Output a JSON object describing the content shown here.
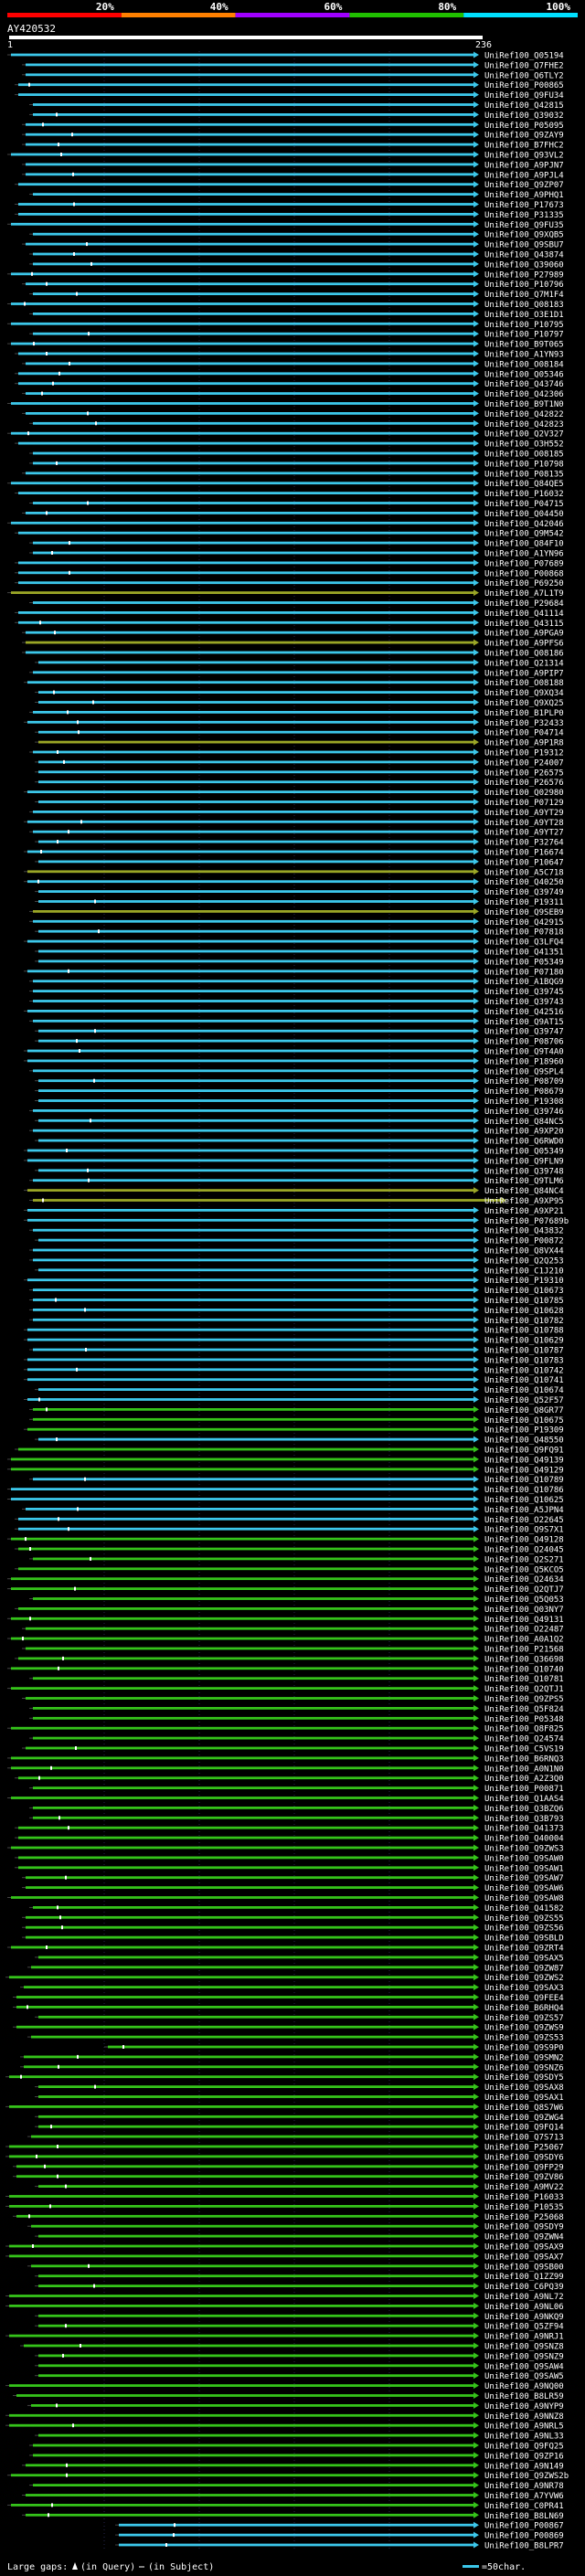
{
  "header": {
    "scale_labels": [
      "20%",
      "40%",
      "60%",
      "80%",
      "100%"
    ],
    "scale_colors": [
      "#ff0000",
      "#ff8000",
      "#a000ff",
      "#20c000",
      "#00e0ff"
    ],
    "query_id": "AY420532",
    "range_start": "1",
    "range_end": "236"
  },
  "colors": {
    "cyan": "#3cc7ea",
    "green": "#35c31a",
    "olive": "#9aa626",
    "black": "#000000",
    "white": "#ffffff",
    "grid": "#8080ff"
  },
  "hits": [
    {
      "label": "UniRef100_Q05194",
      "color": "cyan"
    },
    {
      "label": "UniRef100_Q7FHE2",
      "color": "cyan"
    },
    {
      "label": "UniRef100_Q6TLY2",
      "color": "cyan"
    },
    {
      "label": "UniRef100_P00865",
      "color": "cyan"
    },
    {
      "label": "UniRef100_Q9FU34",
      "color": "cyan"
    },
    {
      "label": "UniRef100_Q42815",
      "color": "cyan"
    },
    {
      "label": "UniRef100_Q39032",
      "color": "cyan"
    },
    {
      "label": "UniRef100_P05095",
      "color": "cyan"
    },
    {
      "label": "UniRef100_Q9ZAY9",
      "color": "cyan"
    },
    {
      "label": "UniRef100_B7FHC2",
      "color": "cyan"
    },
    {
      "label": "UniRef100_Q93VL2",
      "color": "cyan"
    },
    {
      "label": "UniRef100_A9PJN7",
      "color": "cyan"
    },
    {
      "label": "UniRef100_A9PJL4",
      "color": "cyan"
    },
    {
      "label": "UniRef100_Q9ZP07",
      "color": "cyan"
    },
    {
      "label": "UniRef100_A9PHQ1",
      "color": "cyan"
    },
    {
      "label": "UniRef100_P17673",
      "color": "cyan"
    },
    {
      "label": "UniRef100_P31335",
      "color": "cyan"
    },
    {
      "label": "UniRef100_Q9FU35",
      "color": "cyan"
    },
    {
      "label": "UniRef100_Q9XQB5",
      "color": "cyan"
    },
    {
      "label": "UniRef100_Q9SBU7",
      "color": "cyan"
    },
    {
      "label": "UniRef100_Q43874",
      "color": "cyan"
    },
    {
      "label": "UniRef100_Q39060",
      "color": "cyan"
    },
    {
      "label": "UniRef100_P27989",
      "color": "cyan"
    },
    {
      "label": "UniRef100_P10796",
      "color": "cyan"
    },
    {
      "label": "UniRef100_Q7M1F4",
      "color": "cyan"
    },
    {
      "label": "UniRef100_Q08183",
      "color": "cyan"
    },
    {
      "label": "UniRef100_O3E1D1",
      "color": "cyan"
    },
    {
      "label": "UniRef100_P10795",
      "color": "cyan"
    },
    {
      "label": "UniRef100_P10797",
      "color": "cyan"
    },
    {
      "label": "UniRef100_B9T065",
      "color": "cyan"
    },
    {
      "label": "UniRef100_A1YN93",
      "color": "cyan"
    },
    {
      "label": "UniRef100_O08184",
      "color": "cyan"
    },
    {
      "label": "UniRef100_Q05346",
      "color": "cyan"
    },
    {
      "label": "UniRef100_Q43746",
      "color": "cyan"
    },
    {
      "label": "UniRef100_Q42306",
      "color": "cyan"
    },
    {
      "label": "UniRef100_B9T1N0",
      "color": "cyan"
    },
    {
      "label": "UniRef100_Q42822",
      "color": "cyan"
    },
    {
      "label": "UniRef100_Q42823",
      "color": "cyan"
    },
    {
      "label": "UniRef100_Q2V327",
      "color": "cyan"
    },
    {
      "label": "UniRef100_O3H552",
      "color": "cyan"
    },
    {
      "label": "UniRef100_O08185",
      "color": "cyan"
    },
    {
      "label": "UniRef100_P10798",
      "color": "cyan"
    },
    {
      "label": "UniRef100_P08135",
      "color": "cyan"
    },
    {
      "label": "UniRef100_Q84QE5",
      "color": "cyan"
    },
    {
      "label": "UniRef100_P16032",
      "color": "cyan"
    },
    {
      "label": "UniRef100_P04715",
      "color": "cyan"
    },
    {
      "label": "UniRef100_Q04450",
      "color": "cyan"
    },
    {
      "label": "UniRef100_Q42046",
      "color": "cyan"
    },
    {
      "label": "UniRef100_Q9M542",
      "color": "cyan"
    },
    {
      "label": "UniRef100_Q84F10",
      "color": "cyan"
    },
    {
      "label": "UniRef100_A1YN96",
      "color": "cyan"
    },
    {
      "label": "UniRef100_P07689",
      "color": "cyan"
    },
    {
      "label": "UniRef100_P00868",
      "color": "cyan"
    },
    {
      "label": "UniRef100_P69250",
      "color": "cyan"
    },
    {
      "label": "UniRef100_A7L1T9",
      "color": "olive"
    },
    {
      "label": "UniRef100_P29684",
      "color": "cyan"
    },
    {
      "label": "UniRef100_Q41114",
      "color": "cyan"
    },
    {
      "label": "UniRef100_Q43115",
      "color": "cyan"
    },
    {
      "label": "UniRef100_A9PGA9",
      "color": "cyan"
    },
    {
      "label": "UniRef100_A9PFS6",
      "color": "olive"
    },
    {
      "label": "UniRef100_Q08186",
      "color": "cyan"
    },
    {
      "label": "UniRef100_Q21314",
      "color": "cyan"
    },
    {
      "label": "UniRef100_A9PIP7",
      "color": "cyan"
    },
    {
      "label": "UniRef100_O08188",
      "color": "cyan"
    },
    {
      "label": "UniRef100_Q9XQ34",
      "color": "cyan"
    },
    {
      "label": "UniRef100_Q9XQ25",
      "color": "cyan"
    },
    {
      "label": "UniRef100_B1PLP0",
      "color": "cyan"
    },
    {
      "label": "UniRef100_P32433",
      "color": "cyan"
    },
    {
      "label": "UniRef100_P04714",
      "color": "cyan"
    },
    {
      "label": "UniRef100_A9P1R8",
      "color": "olive"
    },
    {
      "label": "UniRef100_P19312",
      "color": "cyan"
    },
    {
      "label": "UniRef100_P24007",
      "color": "cyan"
    },
    {
      "label": "UniRef100_P26575",
      "color": "cyan"
    },
    {
      "label": "UniRef100_P26576",
      "color": "cyan"
    },
    {
      "label": "UniRef100_Q02980",
      "color": "cyan"
    },
    {
      "label": "UniRef100_P07129",
      "color": "cyan"
    },
    {
      "label": "UniRef100_A9YT29",
      "color": "cyan"
    },
    {
      "label": "UniRef100_A9YT28",
      "color": "cyan"
    },
    {
      "label": "UniRef100_A9YT27",
      "color": "cyan"
    },
    {
      "label": "UniRef100_P32764",
      "color": "cyan"
    },
    {
      "label": "UniRef100_P16674",
      "color": "cyan"
    },
    {
      "label": "UniRef100_P10647",
      "color": "cyan"
    },
    {
      "label": "UniRef100_A5C718",
      "color": "olive"
    },
    {
      "label": "UniRef100_Q40250",
      "color": "cyan"
    },
    {
      "label": "UniRef100_Q39749",
      "color": "cyan"
    },
    {
      "label": "UniRef100_P19311",
      "color": "cyan"
    },
    {
      "label": "UniRef100_Q9SEB9",
      "color": "olive"
    },
    {
      "label": "UniRef100_Q42915",
      "color": "cyan"
    },
    {
      "label": "UniRef100_P07818",
      "color": "cyan"
    },
    {
      "label": "UniRef100_Q3LFQ4",
      "color": "cyan"
    },
    {
      "label": "UniRef100_Q41351",
      "color": "cyan"
    },
    {
      "label": "UniRef100_P05349",
      "color": "cyan"
    },
    {
      "label": "UniRef100_P07180",
      "color": "cyan"
    },
    {
      "label": "UniRef100_A1BQG9",
      "color": "cyan"
    },
    {
      "label": "UniRef100_Q39745",
      "color": "cyan"
    },
    {
      "label": "UniRef100_Q39743",
      "color": "cyan"
    },
    {
      "label": "UniRef100_Q42516",
      "color": "cyan"
    },
    {
      "label": "UniRef100_Q9AT15",
      "color": "cyan"
    },
    {
      "label": "UniRef100_Q39747",
      "color": "cyan"
    },
    {
      "label": "UniRef100_P08706",
      "color": "cyan"
    },
    {
      "label": "UniRef100_Q9T4A0",
      "color": "cyan"
    },
    {
      "label": "UniRef100_P18960",
      "color": "cyan"
    },
    {
      "label": "UniRef100_Q9SPL4",
      "color": "cyan"
    },
    {
      "label": "UniRef100_P08709",
      "color": "cyan"
    },
    {
      "label": "UniRef100_P08679",
      "color": "cyan"
    },
    {
      "label": "UniRef100_P19308",
      "color": "cyan"
    },
    {
      "label": "UniRef100_Q39746",
      "color": "cyan"
    },
    {
      "label": "UniRef100_Q84NC5",
      "color": "cyan"
    },
    {
      "label": "UniRef100_A9XP20",
      "color": "cyan"
    },
    {
      "label": "UniRef100_Q6RWD0",
      "color": "cyan"
    },
    {
      "label": "UniRef100_Q05349",
      "color": "cyan"
    },
    {
      "label": "UniRef100_Q9FLN9",
      "color": "cyan"
    },
    {
      "label": "UniRef100_Q39748",
      "color": "cyan"
    },
    {
      "label": "UniRef100_Q9TLM6",
      "color": "cyan"
    },
    {
      "label": "UniRef100_Q84NC4",
      "color": "olive"
    },
    {
      "label": "UniRef100_A9XP95",
      "color": "olive"
    },
    {
      "label": "UniRef100_A9XP21",
      "color": "cyan"
    },
    {
      "label": "UniRef100_P07689b",
      "color": "cyan"
    },
    {
      "label": "UniRef100_Q43832",
      "color": "cyan"
    },
    {
      "label": "UniRef100_P00872",
      "color": "cyan"
    },
    {
      "label": "UniRef100_Q8VX44",
      "color": "cyan"
    },
    {
      "label": "UniRef100_Q2Q253",
      "color": "cyan"
    },
    {
      "label": "UniRef100_C1J210",
      "color": "cyan"
    },
    {
      "label": "UniRef100_P19310",
      "color": "cyan"
    },
    {
      "label": "UniRef100_Q10673",
      "color": "cyan"
    },
    {
      "label": "UniRef100_Q10785",
      "color": "cyan"
    },
    {
      "label": "UniRef100_Q10628",
      "color": "cyan"
    },
    {
      "label": "UniRef100_Q10782",
      "color": "cyan"
    },
    {
      "label": "UniRef100_Q10788",
      "color": "cyan"
    },
    {
      "label": "UniRef100_Q10629",
      "color": "cyan"
    },
    {
      "label": "UniRef100_Q10787",
      "color": "cyan"
    },
    {
      "label": "UniRef100_Q10783",
      "color": "cyan"
    },
    {
      "label": "UniRef100_Q10742",
      "color": "cyan"
    },
    {
      "label": "UniRef100_Q10741",
      "color": "cyan"
    },
    {
      "label": "UniRef100_Q10674",
      "color": "cyan"
    },
    {
      "label": "UniRef100_Q52F57",
      "color": "cyan"
    },
    {
      "label": "UniRef100_Q8GR77",
      "color": "green"
    },
    {
      "label": "UniRef100_Q10675",
      "color": "green"
    },
    {
      "label": "UniRef100_P19309",
      "color": "green"
    },
    {
      "label": "UniRef100_Q48550",
      "color": "cyan"
    },
    {
      "label": "UniRef100_Q9FQ91",
      "color": "green"
    },
    {
      "label": "UniRef100_Q49139",
      "color": "green"
    },
    {
      "label": "UniRef100_Q49129",
      "color": "green"
    },
    {
      "label": "UniRef100_Q10789",
      "color": "cyan"
    },
    {
      "label": "UniRef100_Q10786",
      "color": "cyan"
    },
    {
      "label": "UniRef100_Q10625",
      "color": "cyan"
    },
    {
      "label": "UniRef100_A5JPN4",
      "color": "cyan"
    },
    {
      "label": "UniRef100_O22645",
      "color": "cyan"
    },
    {
      "label": "UniRef100_Q9S7X1",
      "color": "cyan"
    },
    {
      "label": "UniRef100_Q49128",
      "color": "green"
    },
    {
      "label": "UniRef100_Q24045",
      "color": "green"
    },
    {
      "label": "UniRef100_Q2S271",
      "color": "green"
    },
    {
      "label": "UniRef100_Q5KCO5",
      "color": "green"
    },
    {
      "label": "UniRef100_Q24634",
      "color": "green"
    },
    {
      "label": "UniRef100_Q2QTJ7",
      "color": "green"
    },
    {
      "label": "UniRef100_Q5Q053",
      "color": "green"
    },
    {
      "label": "UniRef100_Q03NY7",
      "color": "green"
    },
    {
      "label": "UniRef100_Q49131",
      "color": "green"
    },
    {
      "label": "UniRef100_O22487",
      "color": "green"
    },
    {
      "label": "UniRef100_A0A1Q2",
      "color": "green"
    },
    {
      "label": "UniRef100_P21568",
      "color": "green"
    },
    {
      "label": "UniRef100_Q36698",
      "color": "green"
    },
    {
      "label": "UniRef100_Q10740",
      "color": "green"
    },
    {
      "label": "UniRef100_Q10781",
      "color": "green"
    },
    {
      "label": "UniRef100_Q2QTJ1",
      "color": "green"
    },
    {
      "label": "UniRef100_Q9ZPS5",
      "color": "green"
    },
    {
      "label": "UniRef100_Q5F824",
      "color": "green"
    },
    {
      "label": "UniRef100_P05348",
      "color": "green"
    },
    {
      "label": "UniRef100_Q8F825",
      "color": "green"
    },
    {
      "label": "UniRef100_Q24574",
      "color": "green"
    },
    {
      "label": "UniRef100_C5VS19",
      "color": "green"
    },
    {
      "label": "UniRef100_B6RNQ3",
      "color": "green"
    },
    {
      "label": "UniRef100_A0N1N0",
      "color": "green"
    },
    {
      "label": "UniRef100_A2Z3Q0",
      "color": "green"
    },
    {
      "label": "UniRef100_P00871",
      "color": "green"
    },
    {
      "label": "UniRef100_Q1AAS4",
      "color": "green"
    },
    {
      "label": "UniRef100_Q3BZQ6",
      "color": "green"
    },
    {
      "label": "UniRef100_Q3B793",
      "color": "green"
    },
    {
      "label": "UniRef100_Q41373",
      "color": "green"
    },
    {
      "label": "UniRef100_Q40004",
      "color": "green"
    },
    {
      "label": "UniRef100_Q9ZWS3",
      "color": "green"
    },
    {
      "label": "UniRef100_Q9SAW0",
      "color": "green"
    },
    {
      "label": "UniRef100_Q9SAW1",
      "color": "green"
    },
    {
      "label": "UniRef100_Q9SAW7",
      "color": "green"
    },
    {
      "label": "UniRef100_Q9SAW6",
      "color": "green"
    },
    {
      "label": "UniRef100_Q9SAW8",
      "color": "green"
    },
    {
      "label": "UniRef100_Q41582",
      "color": "green"
    },
    {
      "label": "UniRef100_Q9ZS55",
      "color": "green"
    },
    {
      "label": "UniRef100_Q9ZS56",
      "color": "green"
    },
    {
      "label": "UniRef100_Q9SBLD",
      "color": "green"
    },
    {
      "label": "UniRef100_Q9ZRT4",
      "color": "green"
    },
    {
      "label": "UniRef100_Q9SAX5",
      "color": "green"
    },
    {
      "label": "UniRef100_Q9ZW87",
      "color": "green"
    },
    {
      "label": "UniRef100_Q9ZWS2",
      "color": "green"
    },
    {
      "label": "UniRef100_Q9SAX3",
      "color": "green"
    },
    {
      "label": "UniRef100_Q9FEE4",
      "color": "green"
    },
    {
      "label": "UniRef100_B6RHQ4",
      "color": "green"
    },
    {
      "label": "UniRef100_Q9ZS57",
      "color": "green"
    },
    {
      "label": "UniRef100_Q9ZWS9",
      "color": "green"
    },
    {
      "label": "UniRef100_Q9ZS53",
      "color": "green"
    },
    {
      "label": "UniRef100_Q9S9P0",
      "color": "green"
    },
    {
      "label": "UniRef100_Q9SMN2",
      "color": "green"
    },
    {
      "label": "UniRef100_Q9SNZ6",
      "color": "green"
    },
    {
      "label": "UniRef100_Q9SDY5",
      "color": "green"
    },
    {
      "label": "UniRef100_Q9SAX8",
      "color": "green"
    },
    {
      "label": "UniRef100_Q9SAX1",
      "color": "green"
    },
    {
      "label": "UniRef100_Q8S7W6",
      "color": "green"
    },
    {
      "label": "UniRef100_Q9ZWG4",
      "color": "green"
    },
    {
      "label": "UniRef100_Q9FQ14",
      "color": "green"
    },
    {
      "label": "UniRef100_Q7S713",
      "color": "green"
    },
    {
      "label": "UniRef100_P25067",
      "color": "green"
    },
    {
      "label": "UniRef100_Q9SDY6",
      "color": "green"
    },
    {
      "label": "UniRef100_Q9FP29",
      "color": "green"
    },
    {
      "label": "UniRef100_Q9ZV86",
      "color": "green"
    },
    {
      "label": "UniRef100_A9MV22",
      "color": "green"
    },
    {
      "label": "UniRef100_P16033",
      "color": "green"
    },
    {
      "label": "UniRef100_P10535",
      "color": "green"
    },
    {
      "label": "UniRef100_P25068",
      "color": "green"
    },
    {
      "label": "UniRef100_Q9SDY9",
      "color": "green"
    },
    {
      "label": "UniRef100_Q9ZWN4",
      "color": "green"
    },
    {
      "label": "UniRef100_Q9SAX9",
      "color": "green"
    },
    {
      "label": "UniRef100_Q9SAX7",
      "color": "green"
    },
    {
      "label": "UniRef100_Q9SB00",
      "color": "green"
    },
    {
      "label": "UniRef100_Q1ZZ99",
      "color": "green"
    },
    {
      "label": "UniRef100_C6PQ39",
      "color": "green"
    },
    {
      "label": "UniRef100_A9NL72",
      "color": "green"
    },
    {
      "label": "UniRef100_A9NL06",
      "color": "green"
    },
    {
      "label": "UniRef100_A9NKQ9",
      "color": "green"
    },
    {
      "label": "UniRef100_Q5ZF94",
      "color": "green"
    },
    {
      "label": "UniRef100_A9NRJ1",
      "color": "green"
    },
    {
      "label": "UniRef100_Q9SNZ8",
      "color": "green"
    },
    {
      "label": "UniRef100_Q9SNZ9",
      "color": "green"
    },
    {
      "label": "UniRef100_Q9SAW4",
      "color": "green"
    },
    {
      "label": "UniRef100_Q9SAW5",
      "color": "green"
    },
    {
      "label": "UniRef100_A9NQ00",
      "color": "green"
    },
    {
      "label": "UniRef100_B8LR59",
      "color": "green"
    },
    {
      "label": "UniRef100_A9NYP9",
      "color": "green"
    },
    {
      "label": "UniRef100_A9NNZ8",
      "color": "green"
    },
    {
      "label": "UniRef100_A9NRL5",
      "color": "green"
    },
    {
      "label": "UniRef100_A9NL33",
      "color": "green"
    },
    {
      "label": "UniRef100_Q9FQ25",
      "color": "green"
    },
    {
      "label": "UniRef100_Q9ZP16",
      "color": "green"
    },
    {
      "label": "UniRef100_A9N149",
      "color": "green"
    },
    {
      "label": "UniRef100_Q9ZWS2b",
      "color": "green"
    },
    {
      "label": "UniRef100_A9NR78",
      "color": "green"
    },
    {
      "label": "UniRef100_A7YVW6",
      "color": "green"
    },
    {
      "label": "UniRef100_C0PR41",
      "color": "green"
    },
    {
      "label": "UniRef100_B8LN69",
      "color": "green"
    },
    {
      "label": "UniRef100_P00867",
      "color": "cyan"
    },
    {
      "label": "UniRef100_P00869",
      "color": "cyan"
    },
    {
      "label": "UniRef100_B8LPR7",
      "color": "cyan"
    }
  ],
  "legend": {
    "large_gaps_label": "Large gaps:",
    "in_query_label": "(in Query)",
    "in_subject_label": "(in Subject)",
    "scale_label": "=50char."
  }
}
